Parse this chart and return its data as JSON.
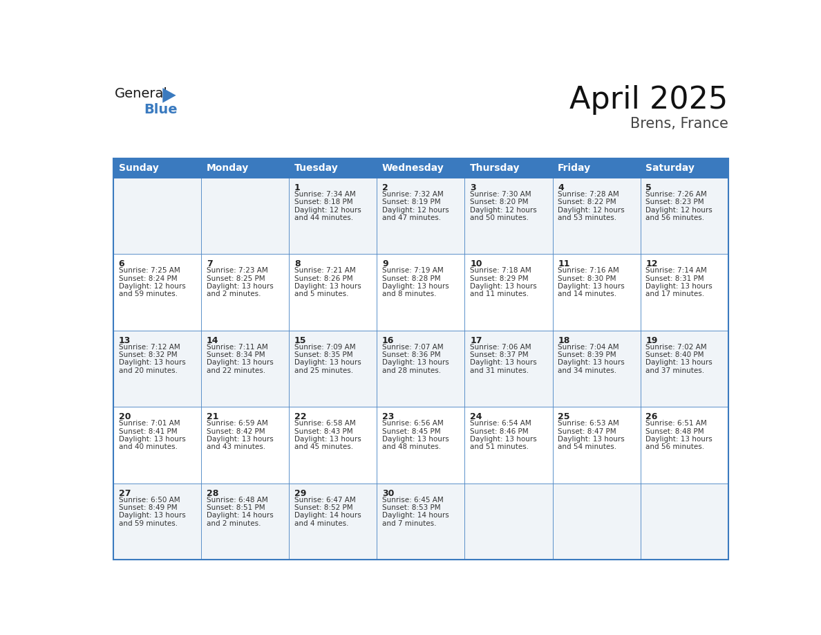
{
  "title": "April 2025",
  "subtitle": "Brens, France",
  "header_bg": "#3a7abf",
  "header_text_color": "#ffffff",
  "border_color": "#3a7abf",
  "row_bg_odd": "#f0f4f8",
  "row_bg_even": "#ffffff",
  "text_color": "#333333",
  "day_num_color": "#222222",
  "days_of_week": [
    "Sunday",
    "Monday",
    "Tuesday",
    "Wednesday",
    "Thursday",
    "Friday",
    "Saturday"
  ],
  "weeks": [
    [
      {
        "day": "",
        "sunrise": "",
        "sunset": "",
        "daylight_l1": "",
        "daylight_l2": ""
      },
      {
        "day": "",
        "sunrise": "",
        "sunset": "",
        "daylight_l1": "",
        "daylight_l2": ""
      },
      {
        "day": "1",
        "sunrise": "7:34 AM",
        "sunset": "8:18 PM",
        "daylight_l1": "Daylight: 12 hours",
        "daylight_l2": "and 44 minutes."
      },
      {
        "day": "2",
        "sunrise": "7:32 AM",
        "sunset": "8:19 PM",
        "daylight_l1": "Daylight: 12 hours",
        "daylight_l2": "and 47 minutes."
      },
      {
        "day": "3",
        "sunrise": "7:30 AM",
        "sunset": "8:20 PM",
        "daylight_l1": "Daylight: 12 hours",
        "daylight_l2": "and 50 minutes."
      },
      {
        "day": "4",
        "sunrise": "7:28 AM",
        "sunset": "8:22 PM",
        "daylight_l1": "Daylight: 12 hours",
        "daylight_l2": "and 53 minutes."
      },
      {
        "day": "5",
        "sunrise": "7:26 AM",
        "sunset": "8:23 PM",
        "daylight_l1": "Daylight: 12 hours",
        "daylight_l2": "and 56 minutes."
      }
    ],
    [
      {
        "day": "6",
        "sunrise": "7:25 AM",
        "sunset": "8:24 PM",
        "daylight_l1": "Daylight: 12 hours",
        "daylight_l2": "and 59 minutes."
      },
      {
        "day": "7",
        "sunrise": "7:23 AM",
        "sunset": "8:25 PM",
        "daylight_l1": "Daylight: 13 hours",
        "daylight_l2": "and 2 minutes."
      },
      {
        "day": "8",
        "sunrise": "7:21 AM",
        "sunset": "8:26 PM",
        "daylight_l1": "Daylight: 13 hours",
        "daylight_l2": "and 5 minutes."
      },
      {
        "day": "9",
        "sunrise": "7:19 AM",
        "sunset": "8:28 PM",
        "daylight_l1": "Daylight: 13 hours",
        "daylight_l2": "and 8 minutes."
      },
      {
        "day": "10",
        "sunrise": "7:18 AM",
        "sunset": "8:29 PM",
        "daylight_l1": "Daylight: 13 hours",
        "daylight_l2": "and 11 minutes."
      },
      {
        "day": "11",
        "sunrise": "7:16 AM",
        "sunset": "8:30 PM",
        "daylight_l1": "Daylight: 13 hours",
        "daylight_l2": "and 14 minutes."
      },
      {
        "day": "12",
        "sunrise": "7:14 AM",
        "sunset": "8:31 PM",
        "daylight_l1": "Daylight: 13 hours",
        "daylight_l2": "and 17 minutes."
      }
    ],
    [
      {
        "day": "13",
        "sunrise": "7:12 AM",
        "sunset": "8:32 PM",
        "daylight_l1": "Daylight: 13 hours",
        "daylight_l2": "and 20 minutes."
      },
      {
        "day": "14",
        "sunrise": "7:11 AM",
        "sunset": "8:34 PM",
        "daylight_l1": "Daylight: 13 hours",
        "daylight_l2": "and 22 minutes."
      },
      {
        "day": "15",
        "sunrise": "7:09 AM",
        "sunset": "8:35 PM",
        "daylight_l1": "Daylight: 13 hours",
        "daylight_l2": "and 25 minutes."
      },
      {
        "day": "16",
        "sunrise": "7:07 AM",
        "sunset": "8:36 PM",
        "daylight_l1": "Daylight: 13 hours",
        "daylight_l2": "and 28 minutes."
      },
      {
        "day": "17",
        "sunrise": "7:06 AM",
        "sunset": "8:37 PM",
        "daylight_l1": "Daylight: 13 hours",
        "daylight_l2": "and 31 minutes."
      },
      {
        "day": "18",
        "sunrise": "7:04 AM",
        "sunset": "8:39 PM",
        "daylight_l1": "Daylight: 13 hours",
        "daylight_l2": "and 34 minutes."
      },
      {
        "day": "19",
        "sunrise": "7:02 AM",
        "sunset": "8:40 PM",
        "daylight_l1": "Daylight: 13 hours",
        "daylight_l2": "and 37 minutes."
      }
    ],
    [
      {
        "day": "20",
        "sunrise": "7:01 AM",
        "sunset": "8:41 PM",
        "daylight_l1": "Daylight: 13 hours",
        "daylight_l2": "and 40 minutes."
      },
      {
        "day": "21",
        "sunrise": "6:59 AM",
        "sunset": "8:42 PM",
        "daylight_l1": "Daylight: 13 hours",
        "daylight_l2": "and 43 minutes."
      },
      {
        "day": "22",
        "sunrise": "6:58 AM",
        "sunset": "8:43 PM",
        "daylight_l1": "Daylight: 13 hours",
        "daylight_l2": "and 45 minutes."
      },
      {
        "day": "23",
        "sunrise": "6:56 AM",
        "sunset": "8:45 PM",
        "daylight_l1": "Daylight: 13 hours",
        "daylight_l2": "and 48 minutes."
      },
      {
        "day": "24",
        "sunrise": "6:54 AM",
        "sunset": "8:46 PM",
        "daylight_l1": "Daylight: 13 hours",
        "daylight_l2": "and 51 minutes."
      },
      {
        "day": "25",
        "sunrise": "6:53 AM",
        "sunset": "8:47 PM",
        "daylight_l1": "Daylight: 13 hours",
        "daylight_l2": "and 54 minutes."
      },
      {
        "day": "26",
        "sunrise": "6:51 AM",
        "sunset": "8:48 PM",
        "daylight_l1": "Daylight: 13 hours",
        "daylight_l2": "and 56 minutes."
      }
    ],
    [
      {
        "day": "27",
        "sunrise": "6:50 AM",
        "sunset": "8:49 PM",
        "daylight_l1": "Daylight: 13 hours",
        "daylight_l2": "and 59 minutes."
      },
      {
        "day": "28",
        "sunrise": "6:48 AM",
        "sunset": "8:51 PM",
        "daylight_l1": "Daylight: 14 hours",
        "daylight_l2": "and 2 minutes."
      },
      {
        "day": "29",
        "sunrise": "6:47 AM",
        "sunset": "8:52 PM",
        "daylight_l1": "Daylight: 14 hours",
        "daylight_l2": "and 4 minutes."
      },
      {
        "day": "30",
        "sunrise": "6:45 AM",
        "sunset": "8:53 PM",
        "daylight_l1": "Daylight: 14 hours",
        "daylight_l2": "and 7 minutes."
      },
      {
        "day": "",
        "sunrise": "",
        "sunset": "",
        "daylight_l1": "",
        "daylight_l2": ""
      },
      {
        "day": "",
        "sunrise": "",
        "sunset": "",
        "daylight_l1": "",
        "daylight_l2": ""
      },
      {
        "day": "",
        "sunrise": "",
        "sunset": "",
        "daylight_l1": "",
        "daylight_l2": ""
      }
    ]
  ],
  "logo_text_general": "General",
  "logo_text_blue": "Blue",
  "logo_triangle_color": "#3a7abf",
  "logo_general_color": "#1a1a1a",
  "title_fontsize": 32,
  "subtitle_fontsize": 15,
  "dow_fontsize": 10,
  "daynum_fontsize": 9,
  "cell_fontsize": 7.5
}
